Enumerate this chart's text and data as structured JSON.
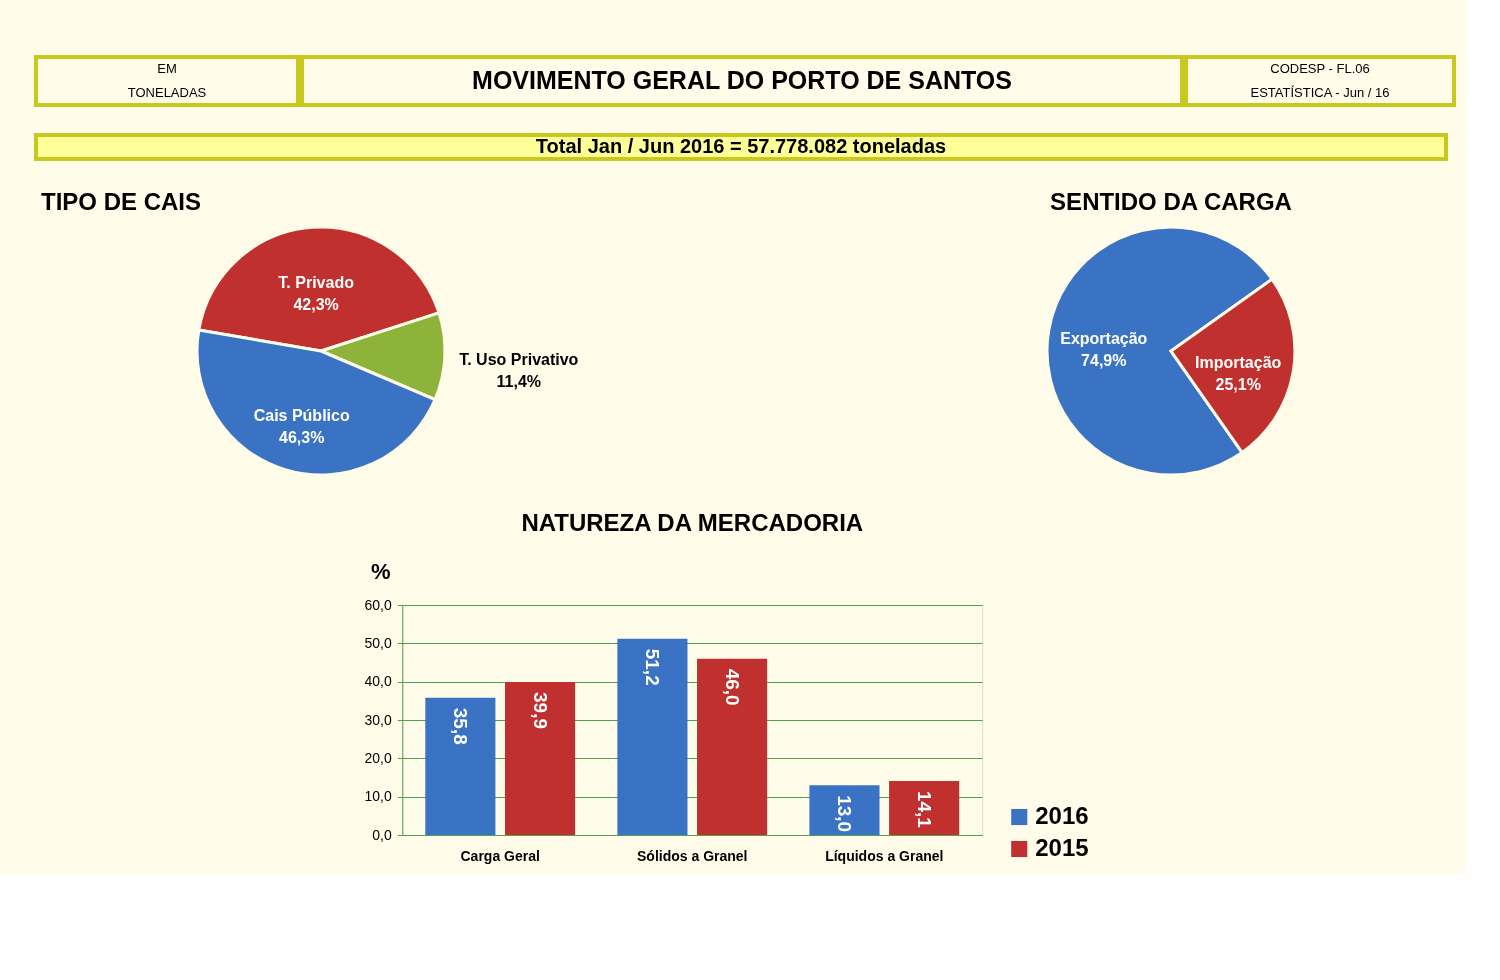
{
  "chart_data": [
    {
      "type": "other",
      "title": "MOVIMENTO GERAL DO PORTO DE SANTOS",
      "subtitle": "Total  Jan / Jun  2016  =  57.778.082  toneladas",
      "annotations": [
        "EM",
        "TONELADAS",
        "CODESP - FL.06",
        "ESTATÍSTICA - Jun / 16"
      ]
    },
    {
      "type": "pie",
      "title": "TIPO DE CAIS",
      "categories": [
        "T. Privado",
        "T. Uso Privativo",
        "Cais Público"
      ],
      "values": [
        42.3,
        11.4,
        46.3
      ],
      "colors": [
        "#c0302e",
        "#8db33a",
        "#3a72c4"
      ],
      "value_labels": [
        "42,3%",
        "11,4%",
        "46,3%"
      ]
    },
    {
      "type": "pie",
      "title": "SENTIDO DA CARGA",
      "categories": [
        "Exportação",
        "Importação"
      ],
      "values": [
        74.9,
        25.1
      ],
      "colors": [
        "#3a72c4",
        "#c0302e"
      ],
      "value_labels": [
        "74,9%",
        "25,1%"
      ]
    },
    {
      "type": "bar",
      "title": "NATUREZA DA MERCADORIA",
      "ylabel": "%",
      "categories": [
        "Carga Geral",
        "Sólidos a Granel",
        "Líquidos a Granel"
      ],
      "series": [
        {
          "name": "2016",
          "color": "#3a72c4",
          "values": [
            35.8,
            51.2,
            13.0
          ],
          "value_labels": [
            "35,8",
            "51,2",
            "13,0"
          ]
        },
        {
          "name": "2015",
          "color": "#c0302e",
          "values": [
            39.9,
            46.0,
            14.1
          ],
          "value_labels": [
            "39,9",
            "46,0",
            "14,1"
          ]
        }
      ],
      "ylim": [
        0,
        60
      ],
      "yticks": [
        {
          "value": 0,
          "label": "0,0"
        },
        {
          "value": 10,
          "label": "10,0"
        },
        {
          "value": 20,
          "label": "20,0"
        },
        {
          "value": 30,
          "label": "30,0"
        },
        {
          "value": 40,
          "label": "40,0"
        },
        {
          "value": 50,
          "label": "50,0"
        },
        {
          "value": 60,
          "label": "60,0"
        }
      ],
      "grid": "y",
      "legend": "bottom right"
    }
  ]
}
